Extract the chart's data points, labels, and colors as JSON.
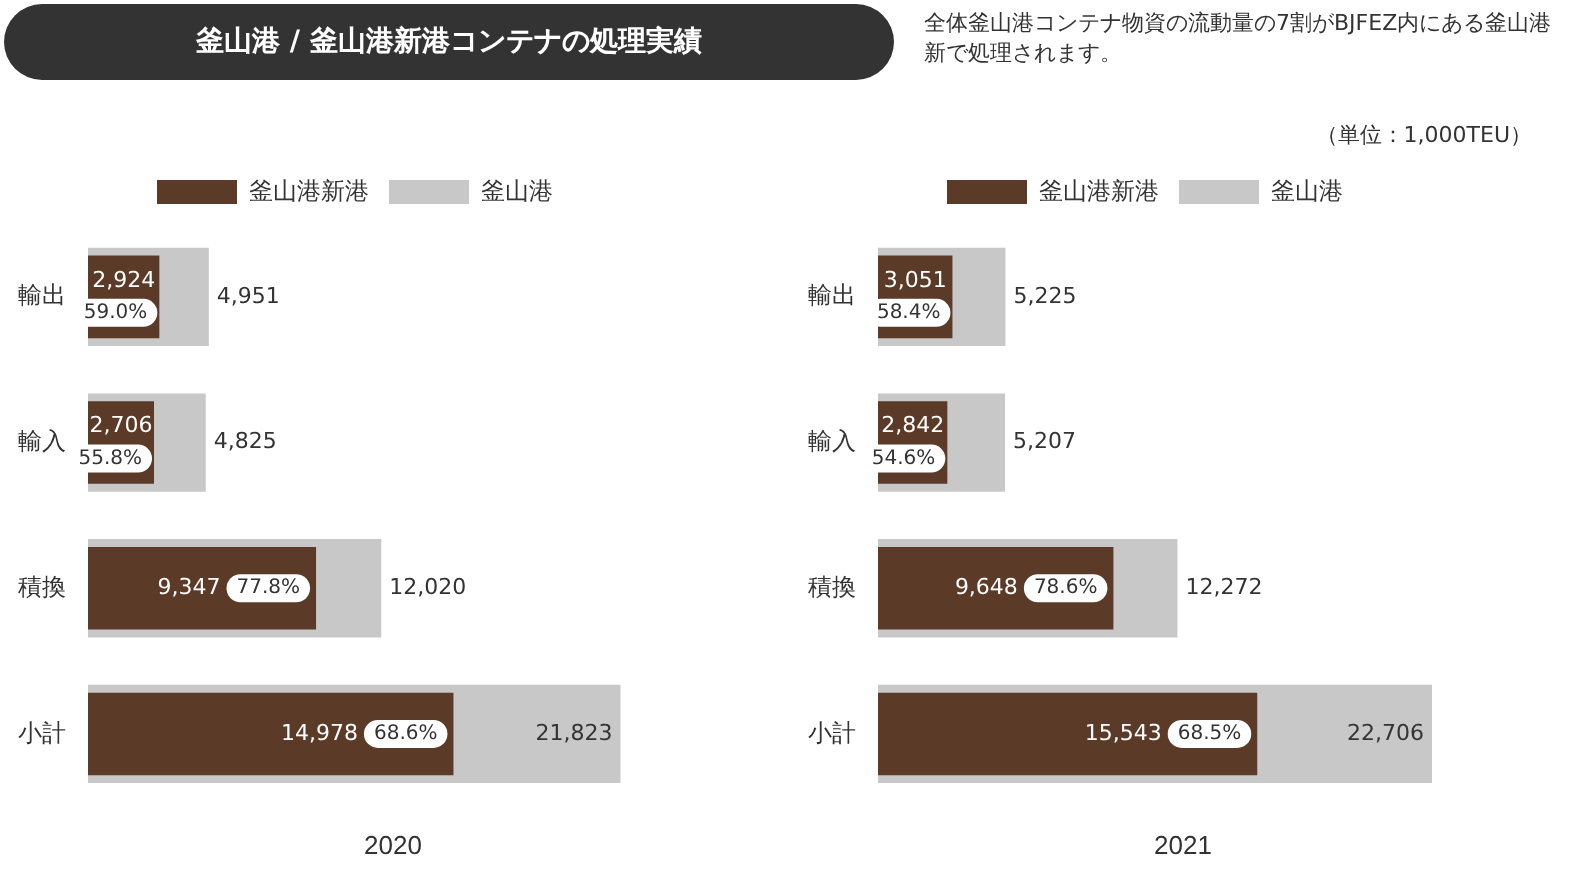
{
  "chart_data": [
    {
      "type": "bar",
      "orientation": "horizontal",
      "title": "釜山港 / 釜山港新港コンテナの処理実績",
      "annotations": [
        {
          "text": "59.0%",
          "x": 2924,
          "y": "輸出"
        },
        {
          "text": "55.8%",
          "x": 2706,
          "y": "輸入"
        },
        {
          "text": "77.8%",
          "x": 9347,
          "y": "積換"
        },
        {
          "text": "68.6%",
          "x": 14978,
          "y": "小計"
        }
      ],
      "xlabel": "2020",
      "categories": [
        "輸出",
        "輸入",
        "積換",
        "小計"
      ],
      "series": [
        {
          "name": "釜山港新港",
          "color": "#5c3a28",
          "values": [
            2924,
            2706,
            9347,
            14978
          ],
          "value_labels": [
            "2,924",
            "2,706",
            "9,347",
            "14,978"
          ]
        },
        {
          "name": "釜山港",
          "color": "#c8c8c8",
          "values": [
            4951,
            4825,
            12020,
            21823
          ],
          "value_labels": [
            "4,951",
            "4,825",
            "12,020",
            "21,823"
          ]
        }
      ],
      "legend": "top",
      "tick_labels": "y",
      "grid": false
    },
    {
      "type": "bar",
      "orientation": "horizontal",
      "subtitle": "全体釜山港コンテナ物資の流動量の7割がBJFEZ内にある釜山港新で処理されます。",
      "annotations": [
        "（単位：1,000TEU）",
        {
          "text": "58.4%",
          "x": 3051,
          "y": "輸出"
        },
        {
          "text": "54.6%",
          "x": 2842,
          "y": "輸入"
        },
        {
          "text": "78.6%",
          "x": 9648,
          "y": "積換"
        },
        {
          "text": "68.5%",
          "x": 15543,
          "y": "小計"
        }
      ],
      "xlabel": "2021",
      "categories": [
        "輸出",
        "輸入",
        "積換",
        "小計"
      ],
      "series": [
        {
          "name": "釜山港新港",
          "color": "#5c3a28",
          "values": [
            3051,
            2842,
            9648,
            15543
          ],
          "value_labels": [
            "3,051",
            "2,842",
            "9,648",
            "15,543"
          ]
        },
        {
          "name": "釜山港",
          "color": "#c8c8c8",
          "values": [
            5225,
            5207,
            12272,
            22706
          ],
          "value_labels": [
            "5,225",
            "5,207",
            "12,272",
            "22,706"
          ]
        }
      ],
      "legend": "top",
      "tick_labels": "y",
      "grid": false
    }
  ]
}
